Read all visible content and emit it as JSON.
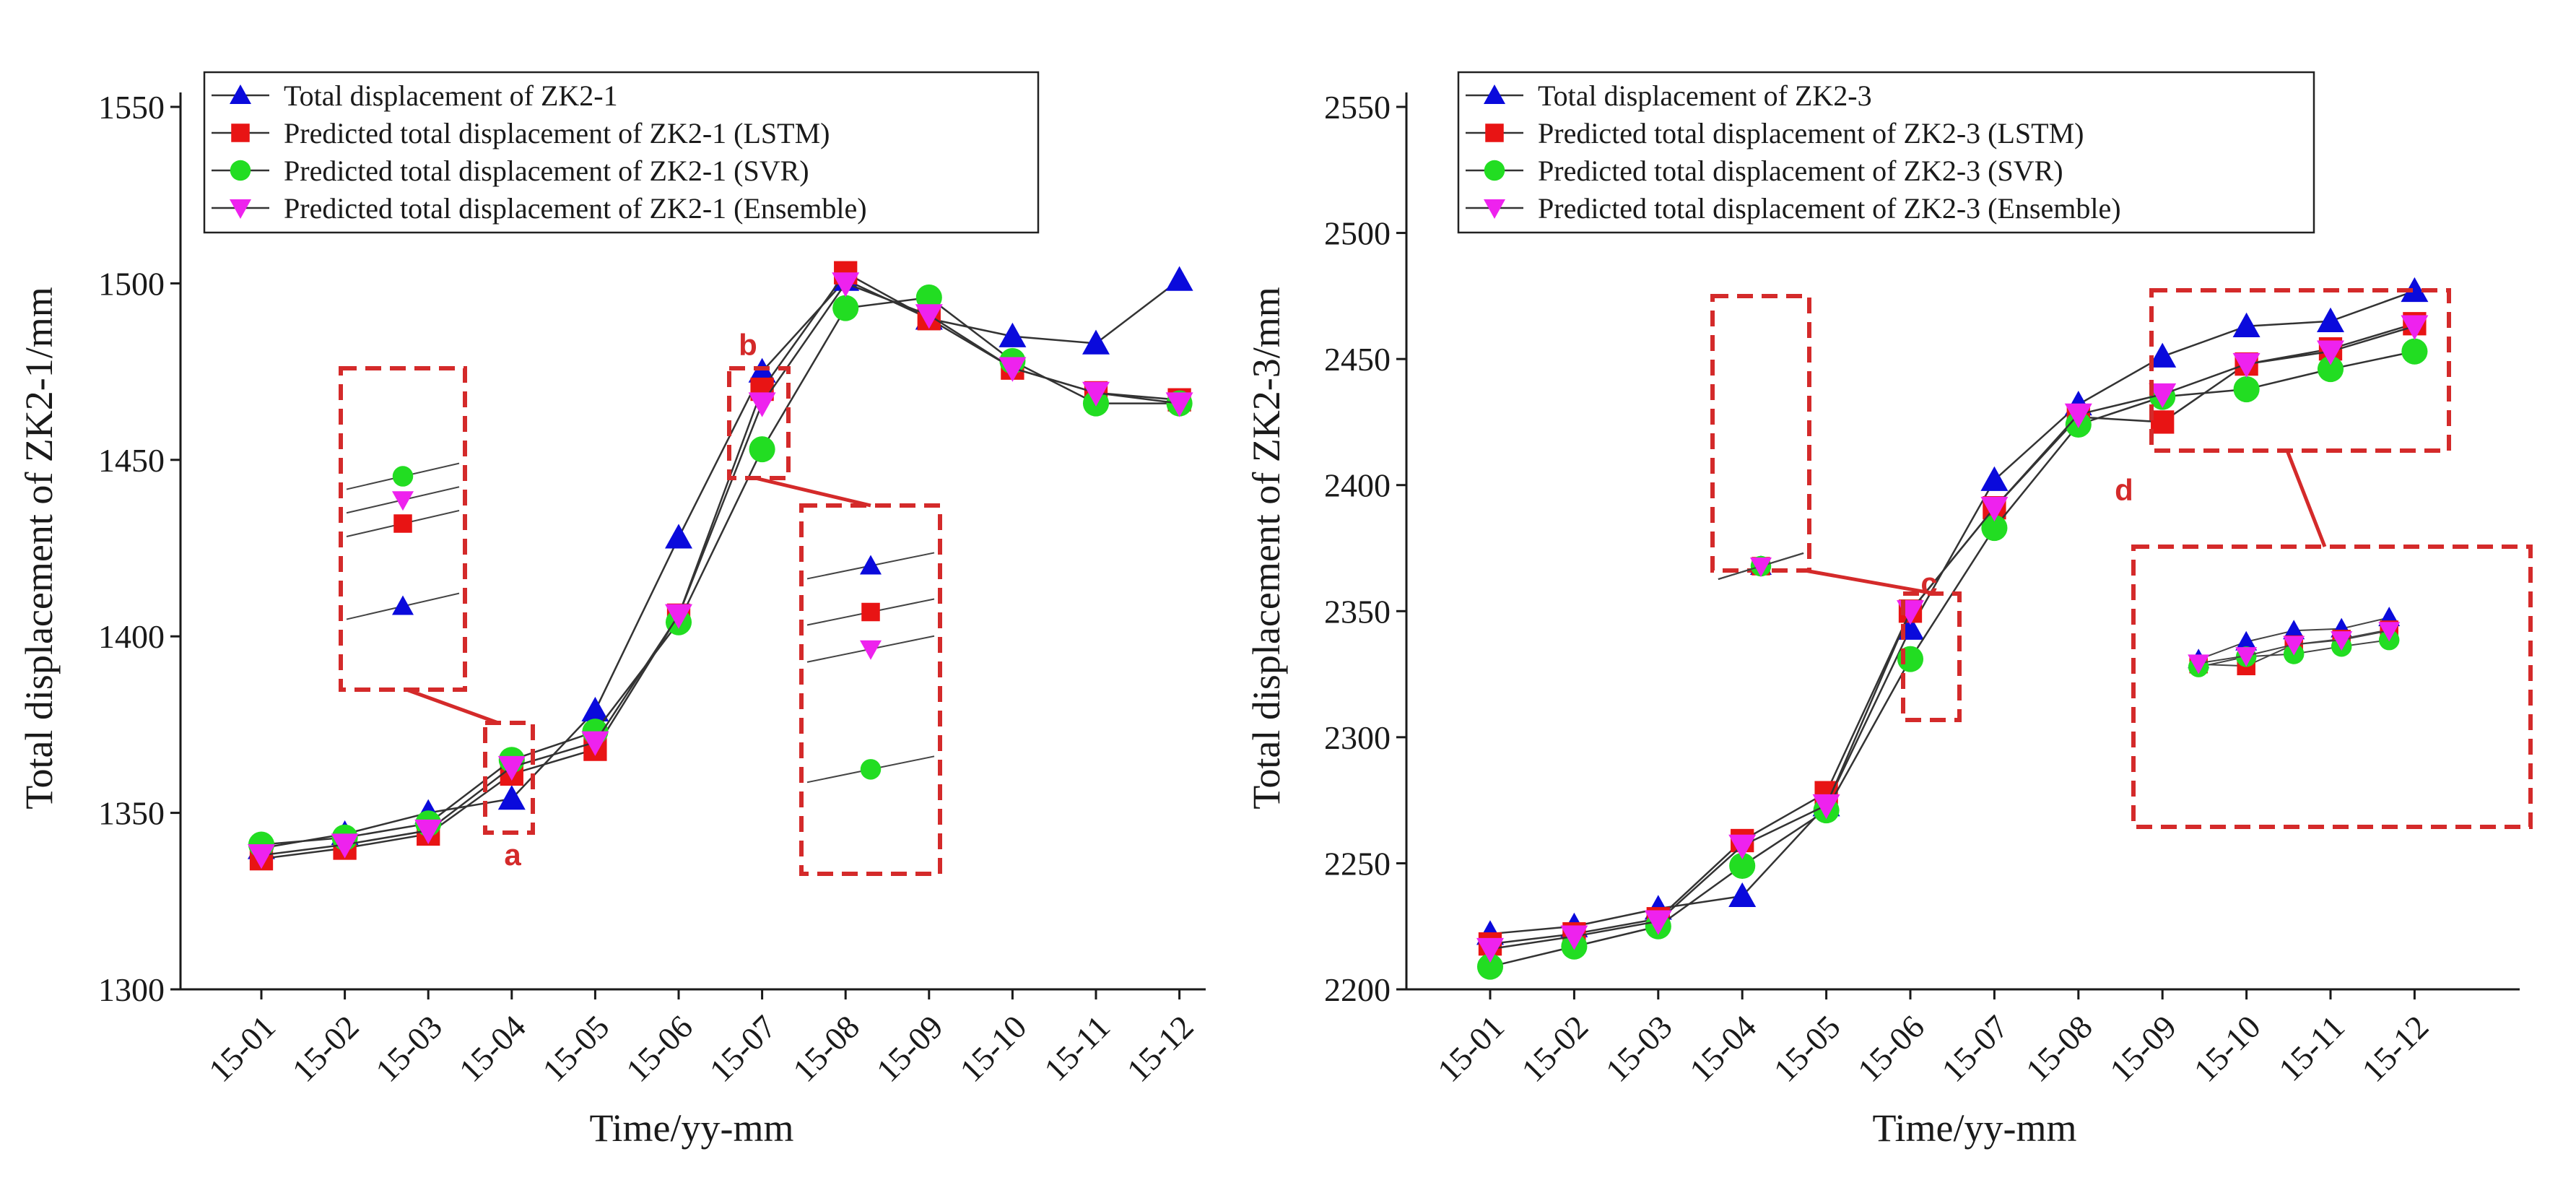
{
  "chart_data": [
    {
      "type": "line",
      "categories": [
        "15-01",
        "15-02",
        "15-03",
        "15-04",
        "15-05",
        "15-06",
        "15-07",
        "15-08",
        "15-09",
        "15-10",
        "15-11",
        "15-12"
      ],
      "xlabel": "Time/yy-mm",
      "ylabel": "Total displacement of ZK2-1/mm",
      "ylim": [
        1300,
        1550
      ],
      "yticks": [
        1300,
        1350,
        1400,
        1450,
        1500,
        1550
      ],
      "legend_position": "top-left",
      "series": [
        {
          "name": "Total displacement of ZK2-1",
          "marker": "triangle-up",
          "color": "#0a0adc",
          "values": [
            1340,
            1344,
            1350,
            1354,
            1379,
            1428,
            1475,
            1501,
            1490,
            1485,
            1483,
            1501
          ]
        },
        {
          "name": "Predicted  total displacement of ZK2-1 (LSTM)",
          "marker": "square",
          "color": "#e81414",
          "values": [
            1337,
            1340,
            1344,
            1361,
            1368,
            1406,
            1470,
            1503,
            1490,
            1476,
            1469,
            1467
          ]
        },
        {
          "name": "Predicted  total displacement of ZK2-1 (SVR)",
          "marker": "circle",
          "color": "#22dd22",
          "values": [
            1341,
            1343,
            1347,
            1365,
            1373,
            1404,
            1453,
            1493,
            1496,
            1478,
            1466,
            1466
          ]
        },
        {
          "name": "Predicted  total displacement of ZK2-1 (Ensemble)",
          "marker": "triangle-down",
          "color": "#ee22ee",
          "values": [
            1338,
            1341,
            1345,
            1363,
            1370,
            1406,
            1466,
            1500,
            1491,
            1476,
            1469,
            1466
          ]
        }
      ],
      "callouts": [
        {
          "label": "a",
          "category_index": 3
        },
        {
          "label": "b",
          "category_index": 6
        }
      ]
    },
    {
      "type": "line",
      "categories": [
        "15-01",
        "15-02",
        "15-03",
        "15-04",
        "15-05",
        "15-06",
        "15-07",
        "15-08",
        "15-09",
        "15-10",
        "15-11",
        "15-12"
      ],
      "xlabel": "Time/yy-mm",
      "ylabel": "Total displacement of ZK2-3/mm",
      "ylim": [
        2200,
        2550
      ],
      "yticks": [
        2200,
        2250,
        2300,
        2350,
        2400,
        2450,
        2500,
        2550
      ],
      "legend_position": "top-left",
      "series": [
        {
          "name": "Total displacement of ZK2-3",
          "marker": "triangle-up",
          "color": "#0a0adc",
          "values": [
            2222,
            2225,
            2232,
            2237,
            2273,
            2343,
            2402,
            2432,
            2451,
            2463,
            2465,
            2477
          ]
        },
        {
          "name": "Predicted  total displacement of ZK2-3 (LSTM)",
          "marker": "square",
          "color": "#e81414",
          "values": [
            2218,
            2222,
            2228,
            2259,
            2278,
            2350,
            2391,
            2427,
            2425,
            2448,
            2454,
            2464
          ]
        },
        {
          "name": "Predicted  total displacement of ZK2-3 (SVR)",
          "marker": "circle",
          "color": "#22dd22",
          "values": [
            2209,
            2217,
            2225,
            2249,
            2271,
            2331,
            2383,
            2424,
            2435,
            2438,
            2446,
            2453
          ]
        },
        {
          "name": "Predicted  total displacement of ZK2-3 (Ensemble)",
          "marker": "triangle-down",
          "color": "#ee22ee",
          "values": [
            2216,
            2221,
            2227,
            2257,
            2273,
            2350,
            2391,
            2428,
            2436,
            2448,
            2453,
            2463
          ]
        }
      ],
      "callouts": [
        {
          "label": "c",
          "category_index": 5
        },
        {
          "label": "d",
          "category_index": 8
        }
      ]
    }
  ]
}
